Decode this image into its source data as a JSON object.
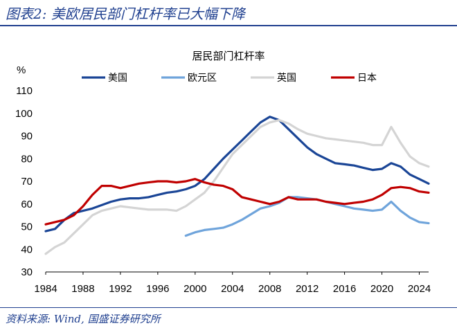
{
  "figure": {
    "title": "图表2: 美欧居民部门杠杆率已大幅下降",
    "source": "资料来源: Wind, 国盛证券研究所"
  },
  "chart_data": {
    "type": "line",
    "title": "居民部门杠杆率",
    "ylabel": "%",
    "xlabel": "",
    "xlim": [
      1984,
      2025
    ],
    "ylim": [
      30,
      110
    ],
    "yticks": [
      30,
      40,
      50,
      60,
      70,
      80,
      90,
      100,
      110
    ],
    "xticks": [
      1984,
      1988,
      1992,
      1996,
      2000,
      2004,
      2008,
      2012,
      2016,
      2020,
      2024
    ],
    "grid": false,
    "legend_position": "top",
    "series": [
      {
        "name": "美国",
        "color": "#1a4596",
        "points": [
          [
            1984,
            48
          ],
          [
            1985,
            49
          ],
          [
            1986,
            53
          ],
          [
            1987,
            56
          ],
          [
            1988,
            57
          ],
          [
            1989,
            58
          ],
          [
            1990,
            59.5
          ],
          [
            1991,
            61
          ],
          [
            1992,
            62
          ],
          [
            1993,
            62.5
          ],
          [
            1994,
            62.5
          ],
          [
            1995,
            63
          ],
          [
            1996,
            64
          ],
          [
            1997,
            65
          ],
          [
            1998,
            65.5
          ],
          [
            1999,
            66.5
          ],
          [
            2000,
            68
          ],
          [
            2001,
            71
          ],
          [
            2002,
            75.5
          ],
          [
            2003,
            80
          ],
          [
            2004,
            84
          ],
          [
            2005,
            88
          ],
          [
            2006,
            92
          ],
          [
            2007,
            96
          ],
          [
            2008,
            98.5
          ],
          [
            2009,
            97
          ],
          [
            2010,
            93
          ],
          [
            2011,
            89
          ],
          [
            2012,
            85
          ],
          [
            2013,
            82
          ],
          [
            2014,
            80
          ],
          [
            2015,
            78
          ],
          [
            2016,
            77.5
          ],
          [
            2017,
            77
          ],
          [
            2018,
            76
          ],
          [
            2019,
            75
          ],
          [
            2020,
            75.5
          ],
          [
            2021,
            78
          ],
          [
            2022,
            76.5
          ],
          [
            2023,
            73
          ],
          [
            2024,
            71
          ],
          [
            2025,
            69
          ]
        ]
      },
      {
        "name": "欧元区",
        "color": "#6fa4db",
        "points": [
          [
            1999,
            46
          ],
          [
            2000,
            47.5
          ],
          [
            2001,
            48.5
          ],
          [
            2002,
            49
          ],
          [
            2003,
            49.5
          ],
          [
            2004,
            51
          ],
          [
            2005,
            53
          ],
          [
            2006,
            55.5
          ],
          [
            2007,
            58
          ],
          [
            2008,
            59
          ],
          [
            2009,
            60.5
          ],
          [
            2010,
            63
          ],
          [
            2011,
            63
          ],
          [
            2012,
            62.5
          ],
          [
            2013,
            62
          ],
          [
            2014,
            61
          ],
          [
            2015,
            60
          ],
          [
            2016,
            59
          ],
          [
            2017,
            58
          ],
          [
            2018,
            57.5
          ],
          [
            2019,
            57
          ],
          [
            2020,
            57.5
          ],
          [
            2021,
            61
          ],
          [
            2022,
            57
          ],
          [
            2023,
            54
          ],
          [
            2024,
            52
          ],
          [
            2025,
            51.5
          ]
        ]
      },
      {
        "name": "英国",
        "color": "#d4d4d4",
        "points": [
          [
            1984,
            38
          ],
          [
            1985,
            41
          ],
          [
            1986,
            43
          ],
          [
            1987,
            47
          ],
          [
            1988,
            51
          ],
          [
            1989,
            55
          ],
          [
            1990,
            57
          ],
          [
            1991,
            58
          ],
          [
            1992,
            59
          ],
          [
            1993,
            58.5
          ],
          [
            1994,
            58
          ],
          [
            1995,
            57.5
          ],
          [
            1996,
            57.5
          ],
          [
            1997,
            57.5
          ],
          [
            1998,
            57
          ],
          [
            1999,
            59
          ],
          [
            2000,
            62
          ],
          [
            2001,
            65
          ],
          [
            2002,
            70
          ],
          [
            2003,
            76
          ],
          [
            2004,
            82
          ],
          [
            2005,
            86
          ],
          [
            2006,
            90
          ],
          [
            2007,
            94
          ],
          [
            2008,
            96
          ],
          [
            2009,
            97
          ],
          [
            2010,
            95.5
          ],
          [
            2011,
            93
          ],
          [
            2012,
            91
          ],
          [
            2013,
            90
          ],
          [
            2014,
            89
          ],
          [
            2015,
            88.5
          ],
          [
            2016,
            88
          ],
          [
            2017,
            87.5
          ],
          [
            2018,
            87
          ],
          [
            2019,
            86
          ],
          [
            2020,
            86
          ],
          [
            2021,
            94
          ],
          [
            2022,
            87
          ],
          [
            2023,
            81
          ],
          [
            2024,
            78
          ],
          [
            2025,
            76.5
          ]
        ]
      },
      {
        "name": "日本",
        "color": "#c00000",
        "points": [
          [
            1984,
            51
          ],
          [
            1985,
            52
          ],
          [
            1986,
            53
          ],
          [
            1987,
            55
          ],
          [
            1988,
            59
          ],
          [
            1989,
            64
          ],
          [
            1990,
            68
          ],
          [
            1991,
            68
          ],
          [
            1992,
            67
          ],
          [
            1993,
            68
          ],
          [
            1994,
            69
          ],
          [
            1995,
            69.5
          ],
          [
            1996,
            70
          ],
          [
            1997,
            70
          ],
          [
            1998,
            69.5
          ],
          [
            1999,
            70
          ],
          [
            2000,
            71
          ],
          [
            2001,
            69.5
          ],
          [
            2002,
            68.5
          ],
          [
            2003,
            68
          ],
          [
            2004,
            66.5
          ],
          [
            2005,
            63
          ],
          [
            2006,
            62
          ],
          [
            2007,
            61
          ],
          [
            2008,
            60
          ],
          [
            2009,
            61
          ],
          [
            2010,
            63
          ],
          [
            2011,
            62
          ],
          [
            2012,
            62
          ],
          [
            2013,
            62
          ],
          [
            2014,
            61
          ],
          [
            2015,
            60.5
          ],
          [
            2016,
            60
          ],
          [
            2017,
            60.5
          ],
          [
            2018,
            61
          ],
          [
            2019,
            62
          ],
          [
            2020,
            64
          ],
          [
            2021,
            67
          ],
          [
            2022,
            67.5
          ],
          [
            2023,
            67
          ],
          [
            2024,
            65.5
          ],
          [
            2025,
            65
          ]
        ]
      }
    ]
  }
}
